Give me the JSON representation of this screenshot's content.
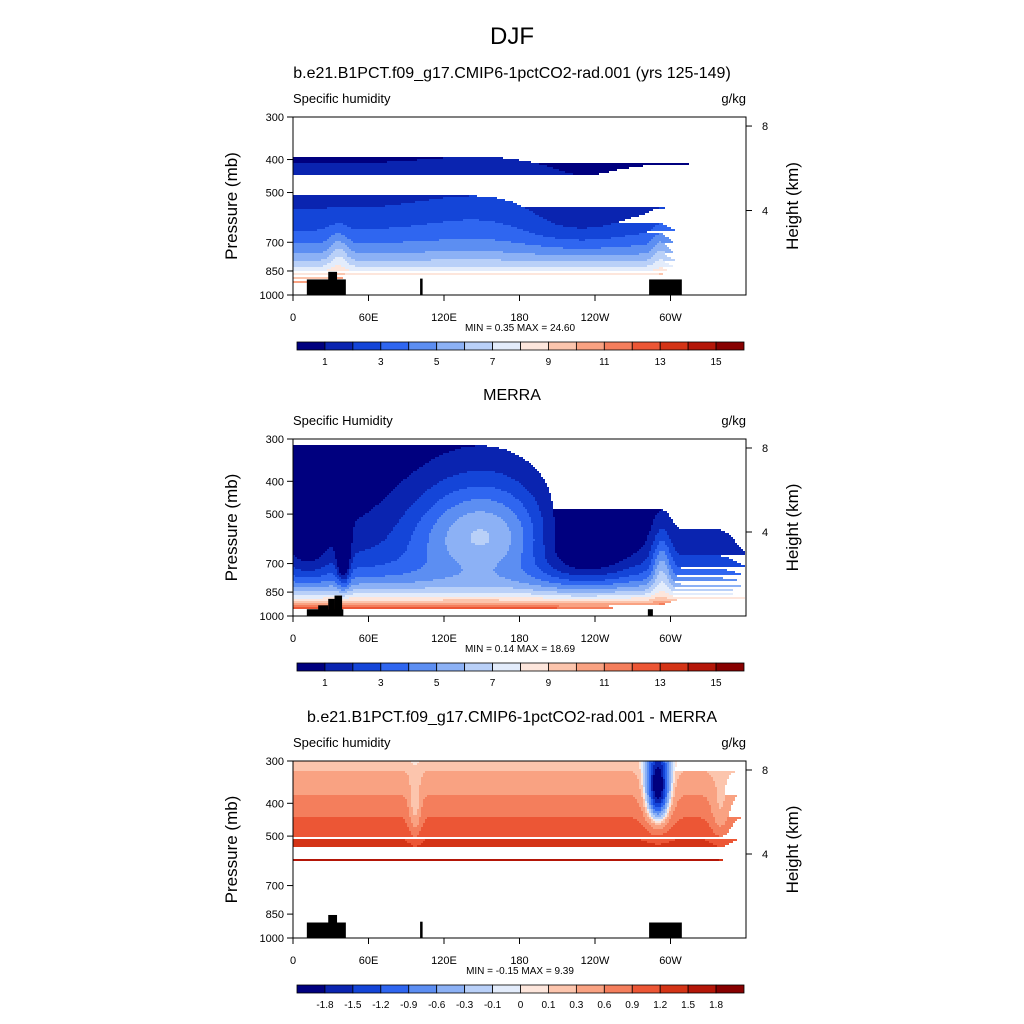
{
  "figure": {
    "season": "DJF"
  },
  "chart_data": [
    {
      "type": "heatmap",
      "title": "b.e21.B1PCT.f09_g17.CMIP6-1pctCO2-rad.001 (yrs 125-149)",
      "variable": "Specific humidity",
      "units": "g/kg",
      "ylabel": "Pressure (mb)",
      "y2label": "Height (km)",
      "x_ticks": [
        "0",
        "60E",
        "120E",
        "180",
        "120W",
        "60W"
      ],
      "x_tick_lon": [
        0,
        60,
        120,
        180,
        240,
        300
      ],
      "xlim": [
        0,
        360
      ],
      "y_ticks": [
        "300",
        "400",
        "500",
        "700",
        "850",
        "1000"
      ],
      "y_tick_p": [
        300,
        400,
        500,
        700,
        850,
        1000
      ],
      "ylim": [
        1000,
        300
      ],
      "y_scale": "log",
      "y2_ticks": [
        "8",
        "4"
      ],
      "stats": "MIN =   0.35  MAX =  24.60",
      "colorbar": {
        "labels": [
          "1",
          "3",
          "5",
          "7",
          "9",
          "11",
          "13",
          "15"
        ],
        "colors": [
          "#00007f",
          "#0a24b0",
          "#1445d8",
          "#2f66f0",
          "#5c8ef2",
          "#8cb1f5",
          "#b9d0f8",
          "#e3ecfb",
          "#fde6dc",
          "#fcc5ad",
          "#f9a282",
          "#f47e5c",
          "#ec5635",
          "#d43416",
          "#b41608",
          "#870000"
        ]
      },
      "field": "model",
      "mask": [
        {
          "lon0": 11,
          "lon1": 42,
          "p0": 900,
          "p1": 1000
        },
        {
          "lon0": 28,
          "lon1": 35,
          "p0": 855,
          "p1": 1000
        },
        {
          "lon0": 101,
          "lon1": 103,
          "p0": 895,
          "p1": 1000
        },
        {
          "lon0": 283,
          "lon1": 309,
          "p0": 900,
          "p1": 1000
        }
      ]
    },
    {
      "type": "heatmap",
      "title": "MERRA",
      "variable": "Specific Humidity",
      "units": "g/kg",
      "ylabel": "Pressure (mb)",
      "y2label": "Height (km)",
      "x_ticks": [
        "0",
        "60E",
        "120E",
        "180",
        "120W",
        "60W"
      ],
      "x_tick_lon": [
        0,
        60,
        120,
        180,
        240,
        300
      ],
      "xlim": [
        0,
        360
      ],
      "y_ticks": [
        "300",
        "400",
        "500",
        "700",
        "850",
        "1000"
      ],
      "y_tick_p": [
        300,
        400,
        500,
        700,
        850,
        1000
      ],
      "ylim": [
        1000,
        300
      ],
      "y_scale": "log",
      "y2_ticks": [
        "8",
        "4"
      ],
      "stats": "MIN =   0.14  MAX =  18.69",
      "colorbar": {
        "labels": [
          "1",
          "3",
          "5",
          "7",
          "9",
          "11",
          "13",
          "15"
        ],
        "colors": [
          "#00007f",
          "#0a24b0",
          "#1445d8",
          "#2f66f0",
          "#5c8ef2",
          "#8cb1f5",
          "#b9d0f8",
          "#e3ecfb",
          "#fde6dc",
          "#fcc5ad",
          "#f9a282",
          "#f47e5c",
          "#ec5635",
          "#d43416",
          "#b41608",
          "#870000"
        ]
      },
      "field": "obs",
      "mask": [
        {
          "lon0": 11,
          "lon1": 40,
          "p0": 955,
          "p1": 1000
        },
        {
          "lon0": 20,
          "lon1": 28,
          "p0": 930,
          "p1": 1000
        },
        {
          "lon0": 28,
          "lon1": 33,
          "p0": 890,
          "p1": 1000
        },
        {
          "lon0": 33,
          "lon1": 39,
          "p0": 870,
          "p1": 1000
        },
        {
          "lon0": 282,
          "lon1": 286,
          "p0": 955,
          "p1": 1000
        }
      ]
    },
    {
      "type": "heatmap",
      "title": "b.e21.B1PCT.f09_g17.CMIP6-1pctCO2-rad.001 - MERRA",
      "variable": "Specific humidity",
      "units": "g/kg",
      "ylabel": "Pressure (mb)",
      "y2label": "Height (km)",
      "x_ticks": [
        "0",
        "60E",
        "120E",
        "180",
        "120W",
        "60W"
      ],
      "x_tick_lon": [
        0,
        60,
        120,
        180,
        240,
        300
      ],
      "xlim": [
        0,
        360
      ],
      "y_ticks": [
        "300",
        "400",
        "500",
        "700",
        "850",
        "1000"
      ],
      "y_tick_p": [
        300,
        400,
        500,
        700,
        850,
        1000
      ],
      "ylim": [
        1000,
        300
      ],
      "y_scale": "log",
      "y2_ticks": [
        "8",
        "4"
      ],
      "stats": "MIN =  -0.15  MAX =   9.39",
      "colorbar": {
        "labels": [
          "-1.8",
          "-1.5",
          "-1.2",
          "-0.9",
          "-0.6",
          "-0.3",
          "-0.1",
          "0",
          "0.1",
          "0.3",
          "0.6",
          "0.9",
          "1.2",
          "1.5",
          "1.8"
        ],
        "colors": [
          "#00007f",
          "#0a24b0",
          "#1445d8",
          "#2f66f0",
          "#5c8ef2",
          "#8cb1f5",
          "#b9d0f8",
          "#e3ecfb",
          "#fde6dc",
          "#fcc5ad",
          "#f9a282",
          "#f47e5c",
          "#ec5635",
          "#d43416",
          "#b41608",
          "#870000"
        ]
      },
      "field": "diff",
      "mask": [
        {
          "lon0": 11,
          "lon1": 42,
          "p0": 900,
          "p1": 1000
        },
        {
          "lon0": 28,
          "lon1": 35,
          "p0": 855,
          "p1": 1000
        },
        {
          "lon0": 101,
          "lon1": 103,
          "p0": 895,
          "p1": 1000
        },
        {
          "lon0": 283,
          "lon1": 309,
          "p0": 900,
          "p1": 1000
        }
      ]
    }
  ]
}
